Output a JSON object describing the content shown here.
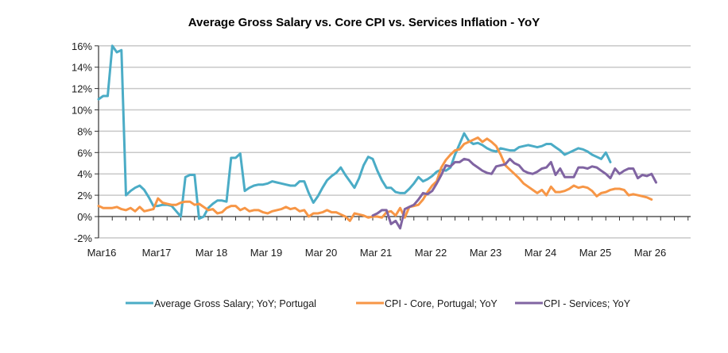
{
  "chart_data": {
    "type": "line",
    "title": "Average Gross Salary vs. Core CPI vs. Services  Inflation - YoY",
    "xlabel": "",
    "ylabel": "",
    "ylim": [
      -2,
      16
    ],
    "y_ticks": [
      -2,
      0,
      2,
      4,
      6,
      8,
      10,
      12,
      14,
      16
    ],
    "y_tick_labels": [
      "-2%",
      "0%",
      "2%",
      "4%",
      "6%",
      "8%",
      "10%",
      "12%",
      "14%",
      "16%"
    ],
    "x_start": "Mar 2016",
    "x_unit": "month",
    "x_range_months": [
      0,
      130
    ],
    "x_tick_labels": [
      {
        "label": "Mar16",
        "month": 0
      },
      {
        "label": "Mar17",
        "month": 12
      },
      {
        "label": "Mar 18",
        "month": 24
      },
      {
        "label": "Mar 19",
        "month": 36
      },
      {
        "label": "Mar 20",
        "month": 48
      },
      {
        "label": "Mar 21",
        "month": 60
      },
      {
        "label": "Mar 22",
        "month": 72
      },
      {
        "label": "Mar 23",
        "month": 84
      },
      {
        "label": "Mar 24",
        "month": 96
      },
      {
        "label": "Mar 25",
        "month": 108
      },
      {
        "label": "Mar 26",
        "month": 120
      }
    ],
    "grid": true,
    "legend_position": "bottom",
    "series": [
      {
        "name": "Average Gross Salary; YoY; Portugal",
        "color": "#4BACC6",
        "start_month": 0,
        "values": [
          11.0,
          11.3,
          11.3,
          16.0,
          15.4,
          15.6,
          2.0,
          2.4,
          2.7,
          2.9,
          2.5,
          1.8,
          1.0,
          1.0,
          1.1,
          1.1,
          1.0,
          0.5,
          0.0,
          3.7,
          3.9,
          3.9,
          -0.2,
          0.0,
          0.8,
          1.2,
          1.5,
          1.5,
          1.4,
          5.5,
          5.5,
          5.9,
          2.4,
          2.7,
          2.9,
          3.0,
          3.0,
          3.1,
          3.3,
          3.2,
          3.1,
          3.0,
          2.9,
          2.9,
          3.3,
          3.3,
          2.2,
          1.3,
          1.9,
          2.7,
          3.4,
          3.8,
          4.1,
          4.6,
          3.9,
          3.3,
          2.7,
          3.6,
          4.8,
          5.6,
          5.4,
          4.3,
          3.4,
          2.7,
          2.7,
          2.3,
          2.2,
          2.2,
          2.6,
          3.1,
          3.7,
          3.3,
          3.5,
          3.8,
          4.2,
          4.4,
          4.3,
          4.6,
          5.8,
          6.8,
          7.8,
          7.1,
          6.8,
          6.9,
          6.7,
          6.4,
          6.2,
          6.1,
          6.4,
          6.3,
          6.2,
          6.2,
          6.5,
          6.6,
          6.7,
          6.6,
          6.5,
          6.6,
          6.8,
          6.8,
          6.5,
          6.2,
          5.8,
          6.0,
          6.2,
          6.4,
          6.3,
          6.1,
          5.8,
          5.6,
          5.4,
          6.0,
          5.1
        ]
      },
      {
        "name": "CPI - Core, Portugal; YoY",
        "color": "#F79646",
        "start_month": 0,
        "values": [
          1.0,
          0.8,
          0.8,
          0.8,
          0.9,
          0.7,
          0.6,
          0.8,
          0.5,
          0.9,
          0.5,
          0.6,
          0.7,
          1.7,
          1.3,
          1.2,
          1.1,
          1.1,
          1.3,
          1.4,
          1.4,
          1.1,
          1.2,
          0.9,
          0.6,
          0.7,
          0.3,
          0.4,
          0.8,
          1.0,
          1.0,
          0.6,
          0.8,
          0.5,
          0.6,
          0.6,
          0.4,
          0.3,
          0.5,
          0.6,
          0.7,
          0.9,
          0.7,
          0.8,
          0.5,
          0.6,
          0.0,
          0.3,
          0.3,
          0.4,
          0.6,
          0.4,
          0.4,
          0.2,
          0.0,
          -0.4,
          0.3,
          0.2,
          0.1,
          -0.1,
          0.0,
          0.0,
          -0.1,
          0.4,
          0.5,
          0.1,
          0.8,
          -0.1,
          0.9,
          1.0,
          1.1,
          1.6,
          2.3,
          2.9,
          3.3,
          4.6,
          5.3,
          5.8,
          6.2,
          6.3,
          6.8,
          7.0,
          7.2,
          7.4,
          7.0,
          7.3,
          7.0,
          6.6,
          5.8,
          4.8,
          4.4,
          4.0,
          3.6,
          3.1,
          2.8,
          2.5,
          2.2,
          2.5,
          2.0,
          2.8,
          2.3,
          2.3,
          2.4,
          2.6,
          2.9,
          2.7,
          2.8,
          2.7,
          2.4,
          1.9,
          2.2,
          2.3,
          2.5,
          2.6,
          2.6,
          2.5,
          2.0,
          2.1,
          2.0,
          1.9,
          1.8,
          1.6
        ]
      },
      {
        "name": "CPI - Services; YoY",
        "color": "#8064A2",
        "start_month": 60,
        "values": [
          0.1,
          0.3,
          0.6,
          0.6,
          -0.7,
          -0.4,
          -1.1,
          0.7,
          0.9,
          1.1,
          1.6,
          2.2,
          2.1,
          2.4,
          3.1,
          3.9,
          4.8,
          4.7,
          5.1,
          5.1,
          5.4,
          5.3,
          4.9,
          4.6,
          4.3,
          4.1,
          4.0,
          4.7,
          4.8,
          4.9,
          5.4,
          5.0,
          4.8,
          4.3,
          4.1,
          4.0,
          4.2,
          4.5,
          4.6,
          5.1,
          3.9,
          4.5,
          3.7,
          3.7,
          3.7,
          4.6,
          4.6,
          4.5,
          4.7,
          4.6,
          4.3,
          4.0,
          3.6,
          4.5,
          4.0,
          4.3,
          4.5,
          4.5,
          3.6,
          3.9,
          3.8,
          4.0,
          3.2
        ]
      }
    ]
  }
}
